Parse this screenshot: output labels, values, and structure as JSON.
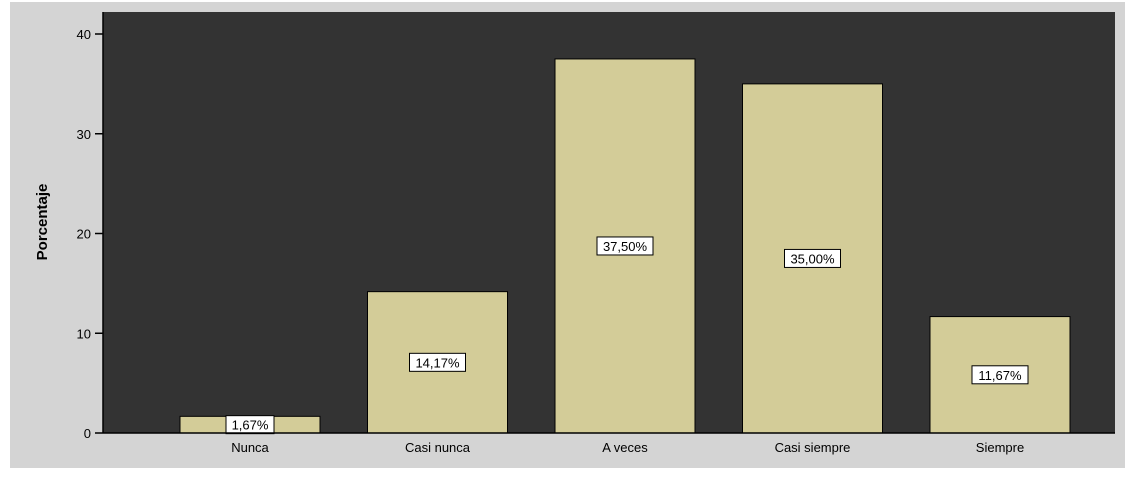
{
  "chart_data": {
    "type": "bar",
    "categories": [
      "Nunca",
      "Casi nunca",
      "A veces",
      "Casi siempre",
      "Siempre"
    ],
    "values": [
      1.67,
      14.17,
      37.5,
      35.0,
      11.67
    ],
    "data_labels": [
      "1,67%",
      "14,17%",
      "37,50%",
      "35,00%",
      "11,67%"
    ],
    "title": "",
    "xlabel": "",
    "ylabel": "Porcentaje",
    "ylim": [
      0,
      40
    ],
    "yticks": [
      0,
      10,
      20,
      30,
      40
    ],
    "ytick_labels": [
      "0",
      "10",
      "20",
      "30",
      "40"
    ],
    "grid": false,
    "colors": {
      "plot_background": "#333333",
      "frame_background": "#d4d4d4",
      "bar_fill": "#d3cc98",
      "bar_stroke": "#000000",
      "label_box": "#ffffff"
    }
  }
}
